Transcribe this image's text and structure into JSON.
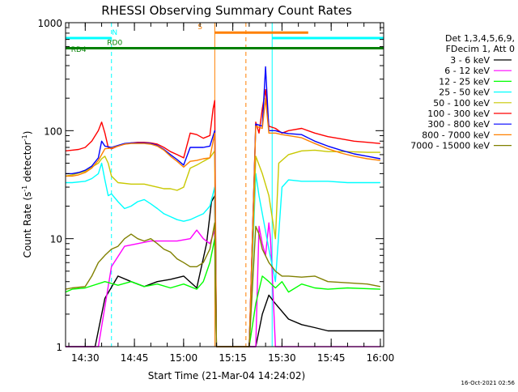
{
  "chart_data": {
    "type": "line",
    "title": "RHESSI Observing Summary Count Rates",
    "xlabel": "Start Time (21-Mar-04 14:24:02)",
    "ylabel": "Count Rate (s",
    "ylabel_sup1": "-1",
    "ylabel_mid": " detector",
    "ylabel_sup2": "-1",
    "ylabel_end": ")",
    "x_ticks": [
      "14:30",
      "14:45",
      "15:00",
      "15:15",
      "15:30",
      "15:45",
      "16:00"
    ],
    "y_ticks": [
      "1",
      "10",
      "100",
      "1000"
    ],
    "xlim_min": [
      24,
      121
    ],
    "ylim": [
      1,
      1000
    ],
    "yscale": "log",
    "timestamp": "16-Oct-2021 02:56",
    "legend_header": [
      "Det 1,3,4,5,6,9,",
      "FDecim 1, Att 0"
    ],
    "series": [
      {
        "name": "3 - 6 keV",
        "color": "#000000",
        "x": [
          24,
          33,
          36,
          40,
          44,
          48,
          52,
          56,
          60,
          64,
          67,
          68.5,
          69.5,
          70,
          74,
          80,
          82,
          84,
          86,
          88,
          92,
          96,
          100,
          104,
          121
        ],
        "y": [
          1,
          1,
          2.8,
          4.5,
          4,
          3.6,
          4,
          4.2,
          4.5,
          3.5,
          9,
          22,
          25,
          1,
          1,
          1,
          1,
          2,
          3,
          2.5,
          1.8,
          1.6,
          1.5,
          1.4,
          1.4
        ]
      },
      {
        "name": "6 - 12 keV",
        "color": "#ff00ff",
        "x": [
          24,
          34,
          38,
          42,
          46,
          50,
          54,
          58,
          62,
          64,
          66,
          68,
          69.5,
          70,
          74,
          80,
          82,
          83,
          84,
          85,
          86,
          86.5,
          87,
          88,
          90,
          96,
          100,
          104,
          120
        ],
        "y": [
          1,
          1,
          5.5,
          8.5,
          9,
          9.5,
          9.5,
          9.5,
          10,
          12,
          10,
          9,
          12,
          1,
          1,
          1,
          1,
          13,
          9,
          7,
          14,
          10,
          5,
          1,
          1,
          1,
          1,
          1,
          1
        ]
      },
      {
        "name": "12 - 25 keV",
        "color": "#00ff00",
        "x": [
          24,
          26,
          30,
          36,
          40,
          44,
          48,
          52,
          56,
          60,
          64,
          66,
          68,
          69.5,
          70,
          80,
          82,
          84,
          86,
          88,
          90,
          92,
          96,
          100,
          104,
          110,
          120
        ],
        "y": [
          3.2,
          3.4,
          3.5,
          4,
          3.7,
          4,
          3.6,
          3.8,
          3.5,
          3.8,
          3.4,
          4,
          6,
          10,
          1,
          1,
          2.5,
          4.5,
          4,
          3.5,
          4,
          3.2,
          3.8,
          3.5,
          3.4,
          3.5,
          3.4
        ]
      },
      {
        "name": "25 - 50 keV",
        "color": "#00ffff",
        "x": [
          24,
          26,
          30,
          32,
          34,
          35,
          36,
          37,
          38,
          40,
          42,
          44,
          46,
          48,
          50,
          52,
          54,
          56,
          58,
          60,
          62,
          64,
          66,
          68,
          69.5,
          70,
          80,
          82,
          83,
          84,
          86,
          88,
          90,
          92,
          96,
          100,
          104,
          110,
          116,
          120
        ],
        "y": [
          33,
          33,
          34,
          36,
          40,
          50,
          35,
          25,
          26,
          22,
          19,
          20,
          22,
          23,
          21,
          19,
          17,
          16,
          15,
          14.5,
          15,
          16,
          17,
          20,
          30,
          1,
          1,
          40,
          25,
          17,
          8,
          4,
          30,
          35,
          34,
          34,
          34,
          33,
          33,
          33
        ]
      },
      {
        "name": "50 - 100 keV",
        "color": "#c8c800",
        "x": [
          24,
          26,
          30,
          32,
          34,
          35,
          36,
          37,
          38,
          40,
          44,
          48,
          50,
          52,
          54,
          56,
          58,
          60,
          62,
          64,
          66,
          68,
          69.5,
          70,
          80,
          82,
          84,
          86,
          88,
          89,
          92,
          96,
          100,
          104,
          110,
          116,
          120
        ],
        "y": [
          38,
          39,
          42,
          46,
          50,
          55,
          58,
          50,
          38,
          33,
          32,
          32,
          31,
          30,
          29,
          29,
          28,
          30,
          45,
          48,
          52,
          56,
          65,
          1,
          1,
          58,
          40,
          25,
          10,
          50,
          60,
          65,
          66,
          64,
          64,
          63,
          63
        ]
      },
      {
        "name": "100 - 300 keV",
        "color": "#ff0000",
        "x": [
          24,
          26,
          28,
          30,
          32,
          34,
          35,
          36,
          37,
          38,
          40,
          42,
          44,
          46,
          48,
          50,
          52,
          54,
          56,
          58,
          60,
          62,
          64,
          66,
          68,
          69,
          69.5,
          70,
          80,
          82,
          83,
          84,
          85,
          86,
          88,
          90,
          92,
          96,
          100,
          104,
          108,
          112,
          116,
          120
        ],
        "y": [
          65,
          66,
          67,
          70,
          80,
          100,
          120,
          95,
          70,
          68,
          72,
          75,
          77,
          78,
          78,
          77,
          75,
          70,
          64,
          60,
          56,
          95,
          92,
          85,
          90,
          160,
          190,
          1,
          1,
          120,
          95,
          160,
          240,
          110,
          105,
          95,
          100,
          105,
          95,
          88,
          84,
          80,
          78,
          76
        ]
      },
      {
        "name": "300 - 800 keV",
        "color": "#0000ff",
        "x": [
          24,
          26,
          28,
          30,
          32,
          34,
          35,
          36,
          38,
          40,
          42,
          44,
          46,
          48,
          50,
          52,
          54,
          56,
          58,
          60,
          62,
          64,
          66,
          68,
          69.5,
          70,
          80,
          82,
          84,
          85,
          86,
          88,
          90,
          92,
          96,
          100,
          104,
          108,
          112,
          116,
          120
        ],
        "y": [
          40,
          40,
          41,
          43,
          47,
          56,
          80,
          72,
          70,
          73,
          76,
          77,
          77,
          77,
          76,
          73,
          67,
          60,
          54,
          48,
          70,
          70,
          70,
          72,
          100,
          1,
          1,
          115,
          110,
          390,
          100,
          100,
          96,
          94,
          92,
          80,
          72,
          66,
          61,
          58,
          55
        ]
      },
      {
        "name": "800 - 7000 keV",
        "color": "#ff8000",
        "x": [
          24,
          26,
          28,
          30,
          32,
          34,
          35,
          36,
          38,
          40,
          42,
          44,
          46,
          48,
          50,
          52,
          54,
          56,
          58,
          60,
          62,
          64,
          66,
          68,
          69.5,
          70,
          80,
          82,
          84,
          85,
          86,
          88,
          90,
          92,
          96,
          100,
          104,
          108,
          112,
          116,
          120
        ],
        "y": [
          38,
          38,
          39,
          41,
          45,
          53,
          60,
          68,
          69,
          72,
          75,
          76,
          76,
          76,
          75,
          72,
          66,
          58,
          52,
          46,
          52,
          53,
          55,
          56,
          95,
          1,
          1,
          110,
          105,
          200,
          95,
          95,
          92,
          90,
          86,
          76,
          68,
          62,
          58,
          55,
          53
        ]
      },
      {
        "name": "7000 - 15000 keV",
        "color": "#808000",
        "x": [
          24,
          26,
          30,
          32,
          34,
          36,
          38,
          40,
          42,
          44,
          46,
          48,
          50,
          52,
          54,
          56,
          58,
          60,
          62,
          64,
          66,
          68,
          69.5,
          70,
          80,
          82,
          83,
          84,
          86,
          88,
          90,
          92,
          96,
          100,
          104,
          110,
          116,
          120
        ],
        "y": [
          3.4,
          3.5,
          3.6,
          4.5,
          6,
          7,
          8,
          8.5,
          10,
          11,
          10,
          9.5,
          10,
          9,
          8,
          7.5,
          6.5,
          6,
          5.5,
          5.5,
          6,
          8,
          14,
          1,
          1,
          13,
          11,
          8,
          6,
          5,
          4.5,
          4.5,
          4.4,
          4.5,
          4,
          3.9,
          3.8,
          3.6
        ]
      }
    ],
    "state_bars": [
      {
        "label": "N",
        "color": "#00ffff",
        "y": 720,
        "label_at": 39,
        "segments": [
          [
            24,
            38
          ],
          [
            87,
            121
          ]
        ]
      },
      {
        "label": "RD0",
        "color": "#008000",
        "y": 580,
        "label_at": 39,
        "segments": [
          [
            24,
            121
          ]
        ]
      },
      {
        "label": "RD4",
        "color": "#008000",
        "y": 500,
        "label_at": 28,
        "segments": [
          [
            24,
            24
          ]
        ]
      },
      {
        "label": "S",
        "color": "#ff8000",
        "y": 810,
        "label_at": 65,
        "segments": [
          [
            69.5,
            98
          ]
        ]
      }
    ],
    "vlines": [
      {
        "x": 24,
        "color": "#00ffff",
        "dash": false
      },
      {
        "x": 38,
        "color": "#00ffff",
        "dash": true
      },
      {
        "x": 69.5,
        "color": "#ff8000",
        "dash": false
      },
      {
        "x": 79,
        "color": "#ff8000",
        "dash": true
      },
      {
        "x": 87,
        "color": "#00ffff",
        "dash": false
      },
      {
        "x": 121,
        "color": "#00ffff",
        "dash": true
      }
    ]
  }
}
